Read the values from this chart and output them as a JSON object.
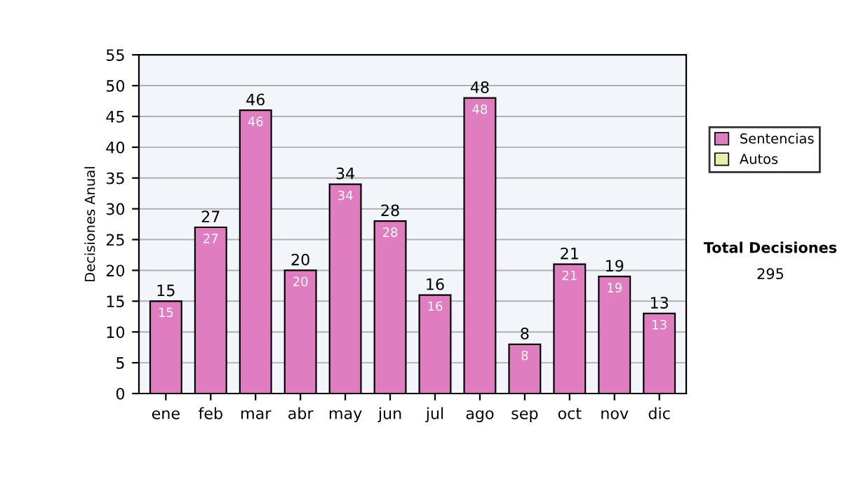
{
  "chart_data": {
    "type": "bar",
    "stacked": true,
    "ylabel": "Decisiones Anual",
    "categories": [
      "ene",
      "feb",
      "mar",
      "abr",
      "may",
      "jun",
      "jul",
      "ago",
      "sep",
      "oct",
      "nov",
      "dic"
    ],
    "series": [
      {
        "name": "Sentencias",
        "color": "#e07cc0",
        "values": [
          15,
          27,
          46,
          20,
          34,
          28,
          16,
          48,
          8,
          21,
          19,
          13
        ],
        "value_labels": [
          "15",
          "27",
          "46",
          "20",
          "34",
          "28",
          "16",
          "48",
          "8",
          "21",
          "19",
          "13"
        ]
      },
      {
        "name": "Autos",
        "color": "#e8f0a8",
        "values": [
          null,
          null,
          null,
          null,
          null,
          null,
          null,
          null,
          null,
          null,
          null,
          null
        ]
      }
    ],
    "totals": [
      "15",
      "27",
      "46",
      "20",
      "34",
      "28",
      "16",
      "48",
      "8",
      "21",
      "19",
      "13"
    ],
    "ylim": [
      0,
      55
    ],
    "yticks": [
      0,
      5,
      10,
      15,
      20,
      25,
      30,
      35,
      40,
      45,
      50,
      55
    ],
    "grid": "y",
    "legend": "right",
    "annotations": [
      "Total Decisiones",
      "295"
    ]
  }
}
